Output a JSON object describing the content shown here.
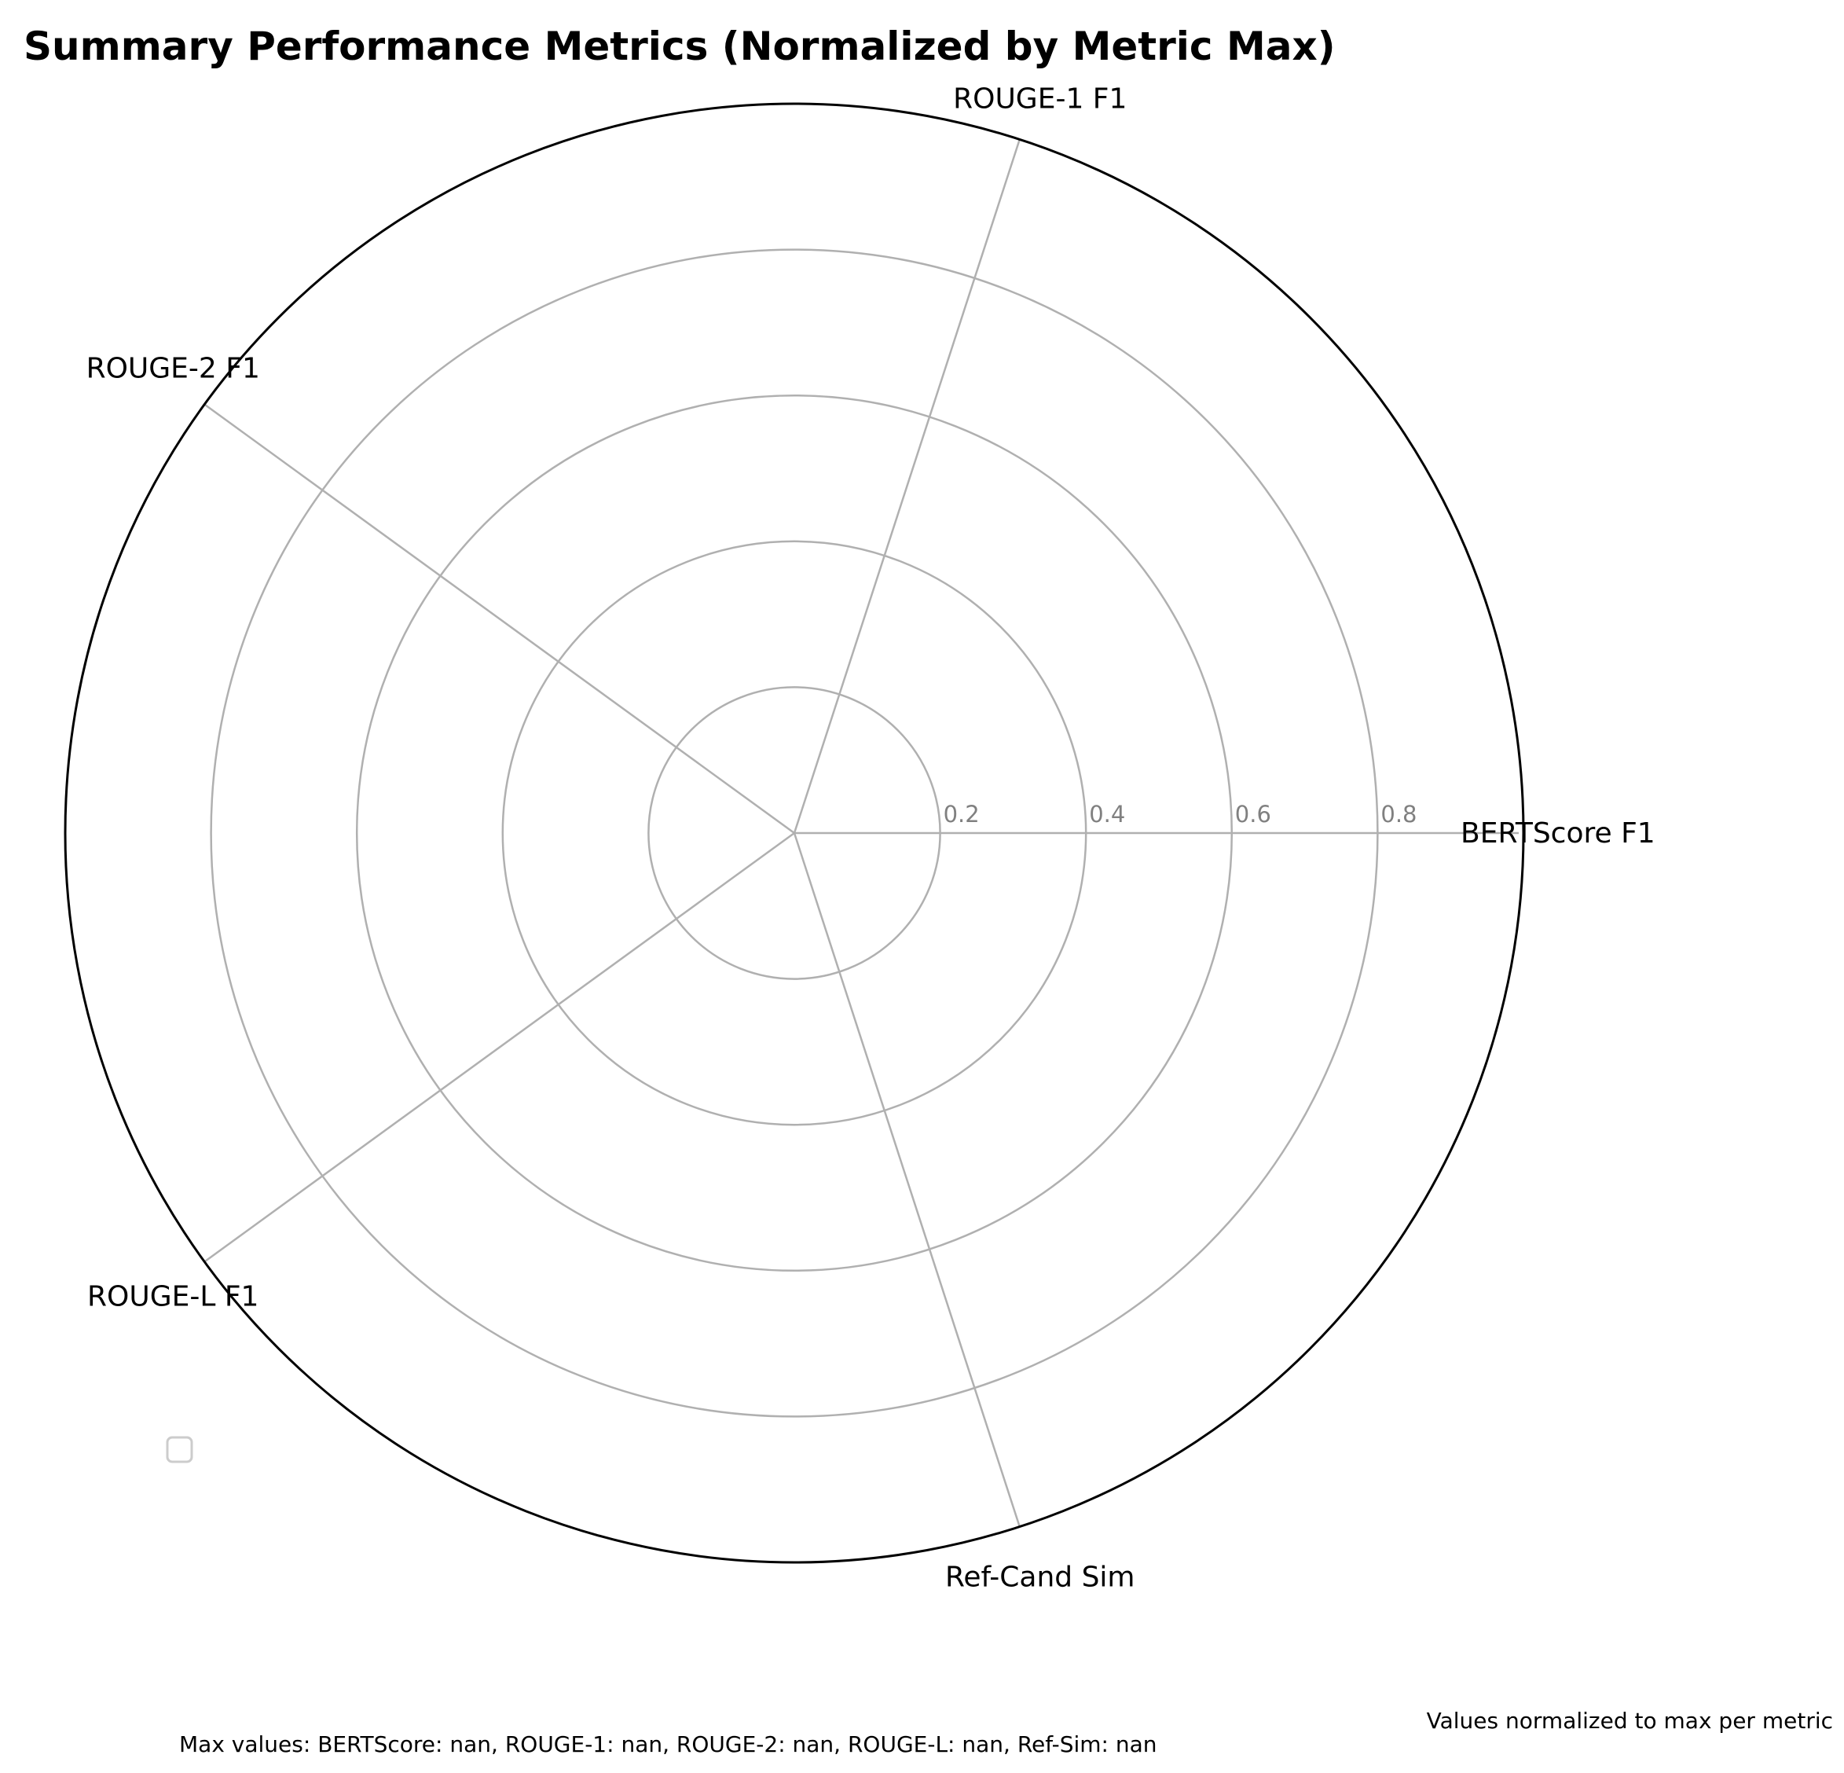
{
  "chart_data": {
    "type": "radar",
    "title": "Summary Performance Metrics (Normalized by Metric Max)",
    "axes": [
      "BERTScore F1",
      "ROUGE-1 F1",
      "ROUGE-2 F1",
      "ROUGE-L F1",
      "Ref-Cand Sim"
    ],
    "rlim": [
      0,
      1
    ],
    "rticks": [
      0.2,
      0.4,
      0.6,
      0.8
    ],
    "rtick_labels": [
      "0.2",
      "0.4",
      "0.6",
      "0.8"
    ],
    "series": [],
    "grid": true,
    "legend": "lower-left",
    "annotation_right": "Values normalized to max per metric",
    "footer": "Max values: BERTScore: nan, ROUGE-1: nan, ROUGE-2: nan, ROUGE-L: nan, Ref-Sim: nan",
    "colors": {
      "grid": "#b0b0b0",
      "spine": "#000000",
      "tick_label": "#808080",
      "legend_border": "#cccccc"
    }
  }
}
